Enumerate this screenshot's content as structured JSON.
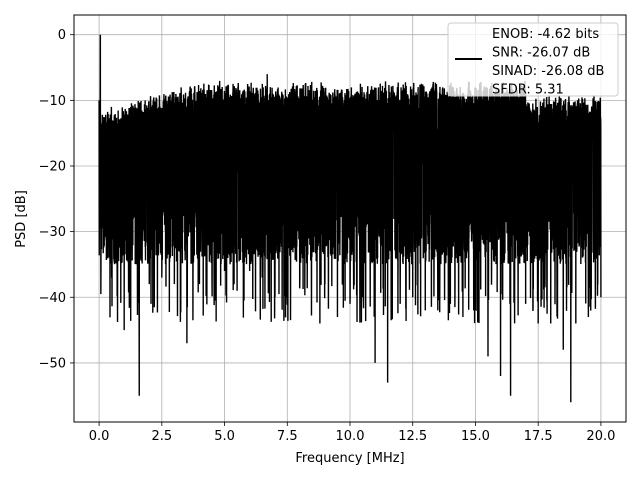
{
  "chart_data": {
    "type": "line",
    "title": "",
    "xlabel": "Frequency [MHz]",
    "ylabel": "PSD [dB]",
    "xlim": [
      -1.0,
      21.0
    ],
    "ylim": [
      -59.0,
      3.0
    ],
    "xticks": [
      0.0,
      2.5,
      5.0,
      7.5,
      10.0,
      12.5,
      15.0,
      17.5,
      20.0
    ],
    "xtick_labels": [
      "0.0",
      "2.5",
      "5.0",
      "7.5",
      "10.0",
      "12.5",
      "15.0",
      "17.5",
      "20.0"
    ],
    "yticks": [
      0,
      -10,
      -20,
      -30,
      -40,
      -50
    ],
    "ytick_labels": [
      "0",
      "−10",
      "−20",
      "−30",
      "−40",
      "−50"
    ],
    "grid": true,
    "legend_position": "top-right",
    "legend_entries": [
      "ENOB: -4.62 bits\nSNR: -26.07 dB\nSINAD: -26.08 dB\nSFDR: 5.31"
    ],
    "series": [
      {
        "color": "#000000",
        "description_of_shape": "dense noise floor between about -12 and -35 dB across 0–20 MHz with a peak at 0 dB near DC",
        "x": [
          0.0,
          0.05,
          0.1,
          0.5,
          1.0,
          1.6,
          2.0,
          2.5,
          3.0,
          3.5,
          4.0,
          4.5,
          5.0,
          5.5,
          6.0,
          6.5,
          6.7,
          7.0,
          7.5,
          8.0,
          8.8,
          9.0,
          9.5,
          10.0,
          10.5,
          11.0,
          11.5,
          12.0,
          12.5,
          13.0,
          13.5,
          14.0,
          14.5,
          15.0,
          15.5,
          16.0,
          16.4,
          17.0,
          17.5,
          18.0,
          18.5,
          18.8,
          19.0,
          19.5,
          20.0
        ],
        "y": [
          -10,
          0,
          -14,
          -37,
          -45,
          -55,
          -38,
          -37,
          -38,
          -47,
          -38,
          -38,
          -36,
          -39,
          -36,
          -37,
          -6,
          -38,
          -40,
          -37,
          -44,
          -38,
          -43,
          -41,
          -40,
          -50,
          -53,
          -41,
          -40,
          -42,
          -42,
          -41,
          -43,
          -42,
          -49,
          -52,
          -55,
          -41,
          -44,
          -44,
          -48,
          -56,
          -44,
          -43,
          -40
        ]
      }
    ]
  }
}
